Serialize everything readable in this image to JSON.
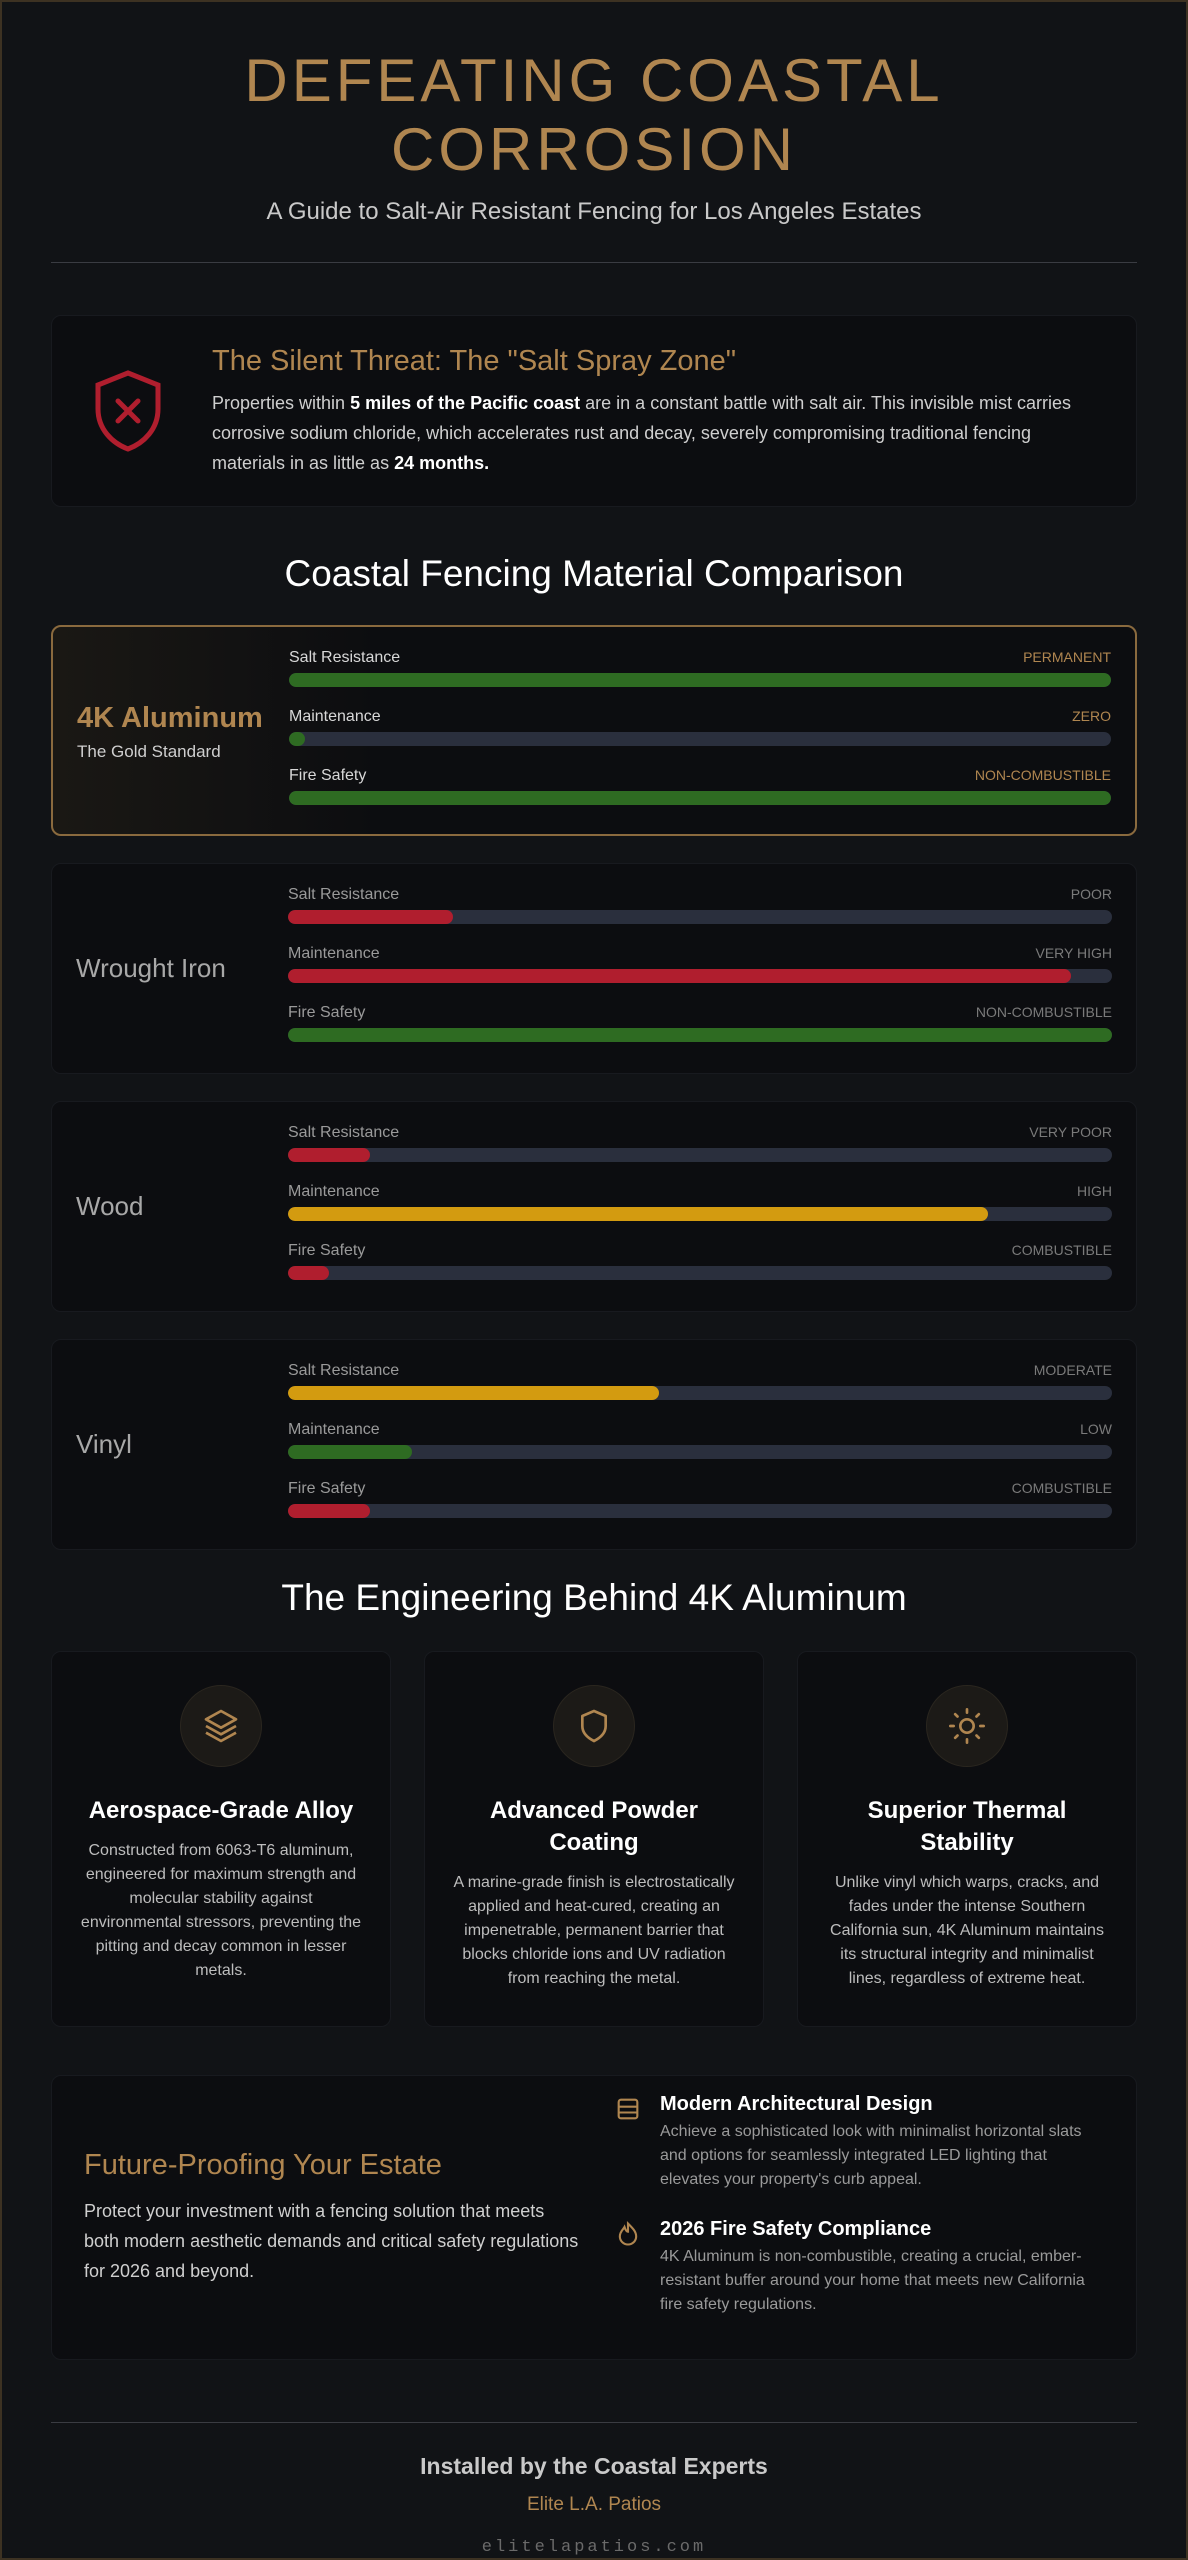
{
  "header": {
    "title": "DEFEATING COASTAL CORROSION",
    "subtitle": "A Guide to Salt-Air Resistant Fencing for Los Angeles Estates"
  },
  "threat": {
    "title": "The Silent Threat: The \"Salt Spray Zone\"",
    "text": [
      "Properties within ",
      "5 miles of the Pacific coast",
      " are in a constant battle with salt air. This invisible mist carries corrosive sodium chloride, which accelerates rust and decay, severely compromising traditional fencing materials in as little as ",
      "24 months."
    ]
  },
  "comparison": {
    "title": "Coastal Fencing Material Comparison",
    "materials": [
      {
        "name": "4K Aluminum",
        "subtitle": "The Gold Standard",
        "metrics": [
          {
            "label": "Salt Resistance",
            "rating": "PERMANENT",
            "value": 100,
            "color": "#2e6b22"
          },
          {
            "label": "Maintenance",
            "rating": "ZERO",
            "value": 2,
            "color": "#2e6b22"
          },
          {
            "label": "Fire Safety",
            "rating": "NON-COMBUSTIBLE",
            "value": 100,
            "color": "#2e6b22"
          }
        ]
      },
      {
        "name": "Wrought Iron",
        "metrics": [
          {
            "label": "Salt Resistance",
            "rating": "POOR",
            "value": 20,
            "color": "#b01e2e"
          },
          {
            "label": "Maintenance",
            "rating": "VERY HIGH",
            "value": 95,
            "color": "#b01e2e"
          },
          {
            "label": "Fire Safety",
            "rating": "NON-COMBUSTIBLE",
            "value": 100,
            "color": "#2e6b22"
          }
        ]
      },
      {
        "name": "Wood",
        "metrics": [
          {
            "label": "Salt Resistance",
            "rating": "VERY POOR",
            "value": 10,
            "color": "#b01e2e"
          },
          {
            "label": "Maintenance",
            "rating": "HIGH",
            "value": 85,
            "color": "#d39b10"
          },
          {
            "label": "Fire Safety",
            "rating": "COMBUSTIBLE",
            "value": 5,
            "color": "#b01e2e"
          }
        ]
      },
      {
        "name": "Vinyl",
        "metrics": [
          {
            "label": "Salt Resistance",
            "rating": "MODERATE",
            "value": 45,
            "color": "#d39b10"
          },
          {
            "label": "Maintenance",
            "rating": "LOW",
            "value": 15,
            "color": "#2e6b22"
          },
          {
            "label": "Fire Safety",
            "rating": "COMBUSTIBLE",
            "value": 10,
            "color": "#b01e2e"
          }
        ]
      }
    ]
  },
  "engineering": {
    "title": "The Engineering Behind 4K Aluminum",
    "features": [
      {
        "title": "Aerospace-Grade Alloy",
        "text": "Constructed from 6063-T6 aluminum, engineered for maximum strength and molecular stability against environmental stressors, preventing the pitting and decay common in lesser metals."
      },
      {
        "title": "Advanced Powder Coating",
        "text": "A marine-grade finish is electrostatically applied and heat-cured, creating an impenetrable, permanent barrier that blocks chloride ions and UV radiation from reaching the metal."
      },
      {
        "title": "Superior Thermal Stability",
        "text": "Unlike vinyl which warps, cracks, and fades under the intense Southern California sun, 4K Aluminum maintains its structural integrity and minimalist lines, regardless of extreme heat."
      }
    ]
  },
  "future": {
    "title": "Future-Proofing Your Estate",
    "text": "Protect your investment with a fencing solution that meets both modern aesthetic demands and critical safety regulations for 2026 and beyond.",
    "items": [
      {
        "title": "Modern Architectural Design",
        "text": "Achieve a sophisticated look with minimalist horizontal slats and options for seamlessly integrated LED lighting that elevates your property's curb appeal."
      },
      {
        "title": "2026 Fire Safety Compliance",
        "text": "4K Aluminum is non-combustible, creating a crucial, ember-resistant buffer around your home that meets new California fire safety regulations."
      }
    ]
  },
  "footer": {
    "heading": "Installed by the Coastal Experts",
    "company": "Elite L.A. Patios",
    "url": "elitelapatios.com"
  }
}
